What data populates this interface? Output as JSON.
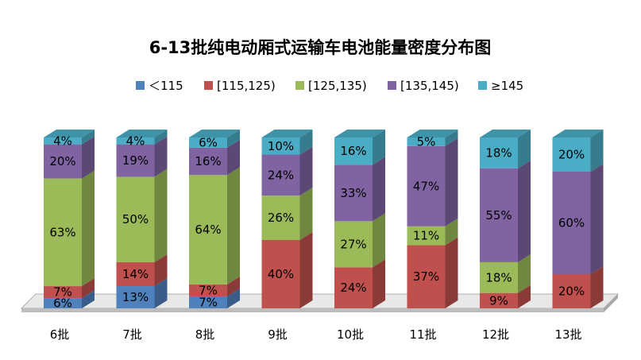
{
  "chart_data": {
    "type": "bar",
    "stacked": true,
    "percent": true,
    "three_d": true,
    "title": "6-13批纯电动厢式运输车电池能量密度分布图",
    "xlabel": "",
    "ylabel": "",
    "ylim": [
      0,
      100
    ],
    "grid": false,
    "legend_position": "top",
    "categories": [
      "6批",
      "7批",
      "8批",
      "9批",
      "10批",
      "11批",
      "12批",
      "13批"
    ],
    "series": [
      {
        "name": "＜115",
        "color": "#4F81BD",
        "values": [
          6,
          13,
          7,
          0,
          0,
          0,
          0,
          0
        ]
      },
      {
        "name": "[115,125)",
        "color": "#C0504D",
        "values": [
          7,
          14,
          7,
          40,
          24,
          37,
          9,
          20
        ]
      },
      {
        "name": "[125,135)",
        "color": "#9BBB59",
        "values": [
          63,
          50,
          64,
          26,
          27,
          11,
          18,
          0
        ]
      },
      {
        "name": "[135,145)",
        "color": "#8064A2",
        "values": [
          20,
          19,
          16,
          24,
          33,
          47,
          55,
          60
        ]
      },
      {
        "name": "≥145",
        "color": "#4BACC6",
        "values": [
          4,
          4,
          6,
          10,
          16,
          5,
          18,
          20
        ]
      }
    ],
    "value_suffix": "%"
  }
}
